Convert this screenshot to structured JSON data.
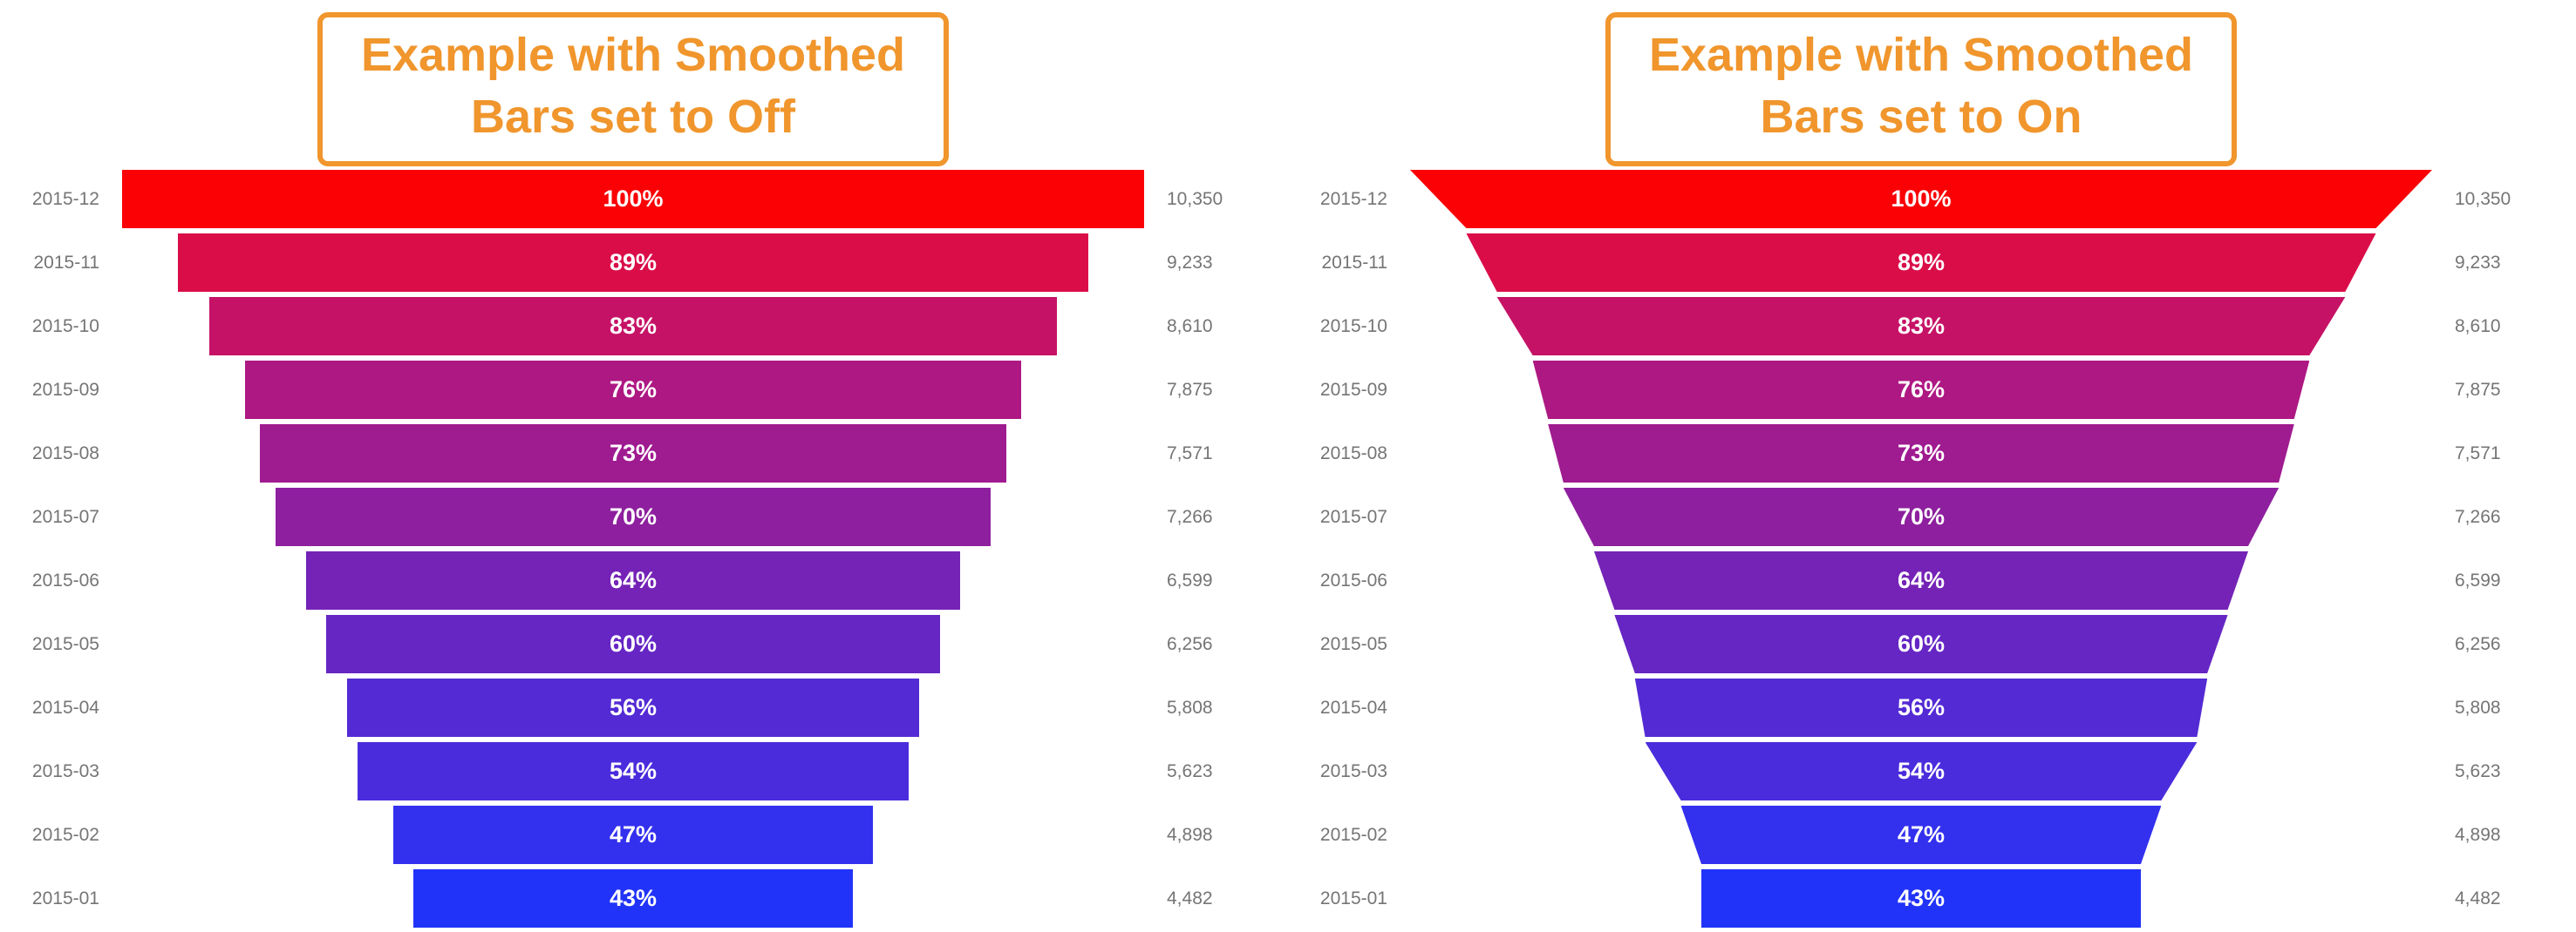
{
  "page": {
    "background": "#FFFFFF"
  },
  "chart_data": [
    {
      "type": "funnel",
      "smoothed": "off",
      "title": "Example with Smoothed Bars set to Off",
      "title_lines": [
        "Example with Smoothed",
        "Bars set to Off"
      ],
      "title_color": "#F0962D",
      "label_color": "#757575",
      "bar_text_color": "#FFFFFF",
      "categories": [
        "2015-12",
        "2015-11",
        "2015-10",
        "2015-09",
        "2015-08",
        "2015-07",
        "2015-06",
        "2015-05",
        "2015-04",
        "2015-03",
        "2015-02",
        "2015-01"
      ],
      "percents": [
        100,
        89,
        83,
        76,
        73,
        70,
        64,
        60,
        56,
        54,
        47,
        43
      ],
      "percent_labels": [
        "100%",
        "89%",
        "83%",
        "76%",
        "73%",
        "70%",
        "64%",
        "60%",
        "56%",
        "54%",
        "47%",
        "43%"
      ],
      "values": [
        10350,
        9233,
        8610,
        7875,
        7571,
        7266,
        6599,
        6256,
        5808,
        5623,
        4898,
        4482
      ],
      "value_labels": [
        "10,350",
        "9,233",
        "8,610",
        "7,875",
        "7,571",
        "7,266",
        "6,599",
        "6,256",
        "5,808",
        "5,623",
        "4,898",
        "4,482"
      ],
      "colors": [
        "#FB0004",
        "#DA0D49",
        "#C61266",
        "#AE1883",
        "#9F1B90",
        "#8E1F9E",
        "#7523B6",
        "#6626C4",
        "#542AD4",
        "#4B2CDC",
        "#3330EE",
        "#2133F9"
      ]
    },
    {
      "type": "funnel",
      "smoothed": "on",
      "title": "Example with Smoothed Bars set to On",
      "title_lines": [
        "Example with Smoothed",
        "Bars set to On"
      ],
      "title_color": "#F0962D",
      "label_color": "#757575",
      "bar_text_color": "#FFFFFF",
      "categories": [
        "2015-12",
        "2015-11",
        "2015-10",
        "2015-09",
        "2015-08",
        "2015-07",
        "2015-06",
        "2015-05",
        "2015-04",
        "2015-03",
        "2015-02",
        "2015-01"
      ],
      "percents": [
        100,
        89,
        83,
        76,
        73,
        70,
        64,
        60,
        56,
        54,
        47,
        43
      ],
      "percent_labels": [
        "100%",
        "89%",
        "83%",
        "76%",
        "73%",
        "70%",
        "64%",
        "60%",
        "56%",
        "54%",
        "47%",
        "43%"
      ],
      "values": [
        10350,
        9233,
        8610,
        7875,
        7571,
        7266,
        6599,
        6256,
        5808,
        5623,
        4898,
        4482
      ],
      "value_labels": [
        "10,350",
        "9,233",
        "8,610",
        "7,875",
        "7,571",
        "7,266",
        "6,599",
        "6,256",
        "5,808",
        "5,623",
        "4,898",
        "4,482"
      ],
      "colors": [
        "#FB0004",
        "#DA0D49",
        "#C61266",
        "#AE1883",
        "#9F1B90",
        "#8E1F9E",
        "#7523B6",
        "#6626C4",
        "#542AD4",
        "#4B2CDC",
        "#3330EE",
        "#2133F9"
      ]
    }
  ]
}
